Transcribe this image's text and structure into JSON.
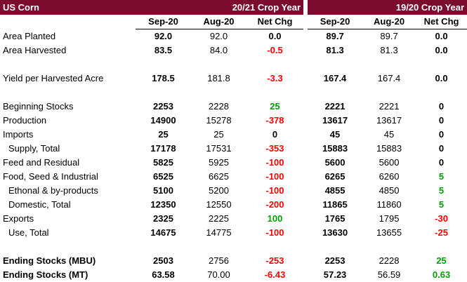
{
  "title": "US Corn",
  "crop_year_current": "20/21 Crop Year",
  "crop_year_prior": "19/20 Crop Year",
  "columns": {
    "cur_sep": "Sep-20",
    "cur_aug": "Aug-20",
    "cur_chg": "Net Chg",
    "pri_sep": "Sep-20",
    "pri_aug": "Aug-20",
    "pri_chg": "Net Chg"
  },
  "colors": {
    "header_bg": "#7b0c2f",
    "negative": "#ff0000",
    "positive": "#00a000"
  },
  "rows": [
    {
      "label": "Area Planted",
      "indent": false,
      "bold": false,
      "blank_before": false,
      "c1": "92.0",
      "c2": "92.0",
      "c3": "0.0",
      "c3s": "zero",
      "p1": "89.7",
      "p2": "89.7",
      "p3": "0.0",
      "p3s": "zero"
    },
    {
      "label": "Area Harvested",
      "indent": false,
      "bold": false,
      "blank_before": false,
      "c1": "83.5",
      "c2": "84.0",
      "c3": "-0.5",
      "c3s": "neg",
      "p1": "81.3",
      "p2": "81.3",
      "p3": "0.0",
      "p3s": "zero"
    },
    {
      "label": "Yield per Harvested Acre",
      "indent": false,
      "bold": false,
      "blank_before": true,
      "c1": "178.5",
      "c2": "181.8",
      "c3": "-3.3",
      "c3s": "neg",
      "p1": "167.4",
      "p2": "167.4",
      "p3": "0.0",
      "p3s": "zero"
    },
    {
      "label": "Beginning Stocks",
      "indent": false,
      "bold": false,
      "blank_before": true,
      "c1": "2253",
      "c2": "2228",
      "c3": "25",
      "c3s": "pos",
      "p1": "2221",
      "p2": "2221",
      "p3": "0",
      "p3s": "zero"
    },
    {
      "label": "Production",
      "indent": false,
      "bold": false,
      "blank_before": false,
      "c1": "14900",
      "c2": "15278",
      "c3": "-378",
      "c3s": "neg",
      "p1": "13617",
      "p2": "13617",
      "p3": "0",
      "p3s": "zero"
    },
    {
      "label": "Imports",
      "indent": false,
      "bold": false,
      "blank_before": false,
      "c1": "25",
      "c2": "25",
      "c3": "0",
      "c3s": "zero",
      "p1": "45",
      "p2": "45",
      "p3": "0",
      "p3s": "zero"
    },
    {
      "label": "Supply, Total",
      "indent": true,
      "bold": false,
      "blank_before": false,
      "c1": "17178",
      "c2": "17531",
      "c3": "-353",
      "c3s": "neg",
      "p1": "15883",
      "p2": "15883",
      "p3": "0",
      "p3s": "zero"
    },
    {
      "label": "Feed and Residual",
      "indent": false,
      "bold": false,
      "blank_before": false,
      "c1": "5825",
      "c2": "5925",
      "c3": "-100",
      "c3s": "neg",
      "p1": "5600",
      "p2": "5600",
      "p3": "0",
      "p3s": "zero"
    },
    {
      "label": "Food, Seed & Industrial",
      "indent": false,
      "bold": false,
      "blank_before": false,
      "c1": "6525",
      "c2": "6625",
      "c3": "-100",
      "c3s": "neg",
      "p1": "6265",
      "p2": "6260",
      "p3": "5",
      "p3s": "pos"
    },
    {
      "label": "Ethonal & by-products",
      "indent": true,
      "bold": false,
      "blank_before": false,
      "c1": "5100",
      "c2": "5200",
      "c3": "-100",
      "c3s": "neg",
      "p1": "4855",
      "p2": "4850",
      "p3": "5",
      "p3s": "pos"
    },
    {
      "label": "Domestic, Total",
      "indent": true,
      "bold": false,
      "blank_before": false,
      "c1": "12350",
      "c2": "12550",
      "c3": "-200",
      "c3s": "neg",
      "p1": "11865",
      "p2": "11860",
      "p3": "5",
      "p3s": "pos"
    },
    {
      "label": "Exports",
      "indent": false,
      "bold": false,
      "blank_before": false,
      "c1": "2325",
      "c2": "2225",
      "c3": "100",
      "c3s": "pos",
      "p1": "1765",
      "p2": "1795",
      "p3": "-30",
      "p3s": "neg"
    },
    {
      "label": "Use, Total",
      "indent": true,
      "bold": false,
      "blank_before": false,
      "c1": "14675",
      "c2": "14775",
      "c3": "-100",
      "c3s": "neg",
      "p1": "13630",
      "p2": "13655",
      "p3": "-25",
      "p3s": "neg"
    },
    {
      "label": "Ending Stocks (MBU)",
      "indent": false,
      "bold": true,
      "blank_before": true,
      "c1": "2503",
      "c2": "2756",
      "c3": "-253",
      "c3s": "neg",
      "p1": "2253",
      "p2": "2228",
      "p3": "25",
      "p3s": "pos"
    },
    {
      "label": "Ending Stocks (MT)",
      "indent": false,
      "bold": true,
      "blank_before": false,
      "c1": "63.58",
      "c2": "70.00",
      "c3": "-6.43",
      "c3s": "neg",
      "p1": "57.23",
      "p2": "56.59",
      "p3": "0.63",
      "p3s": "pos"
    }
  ]
}
